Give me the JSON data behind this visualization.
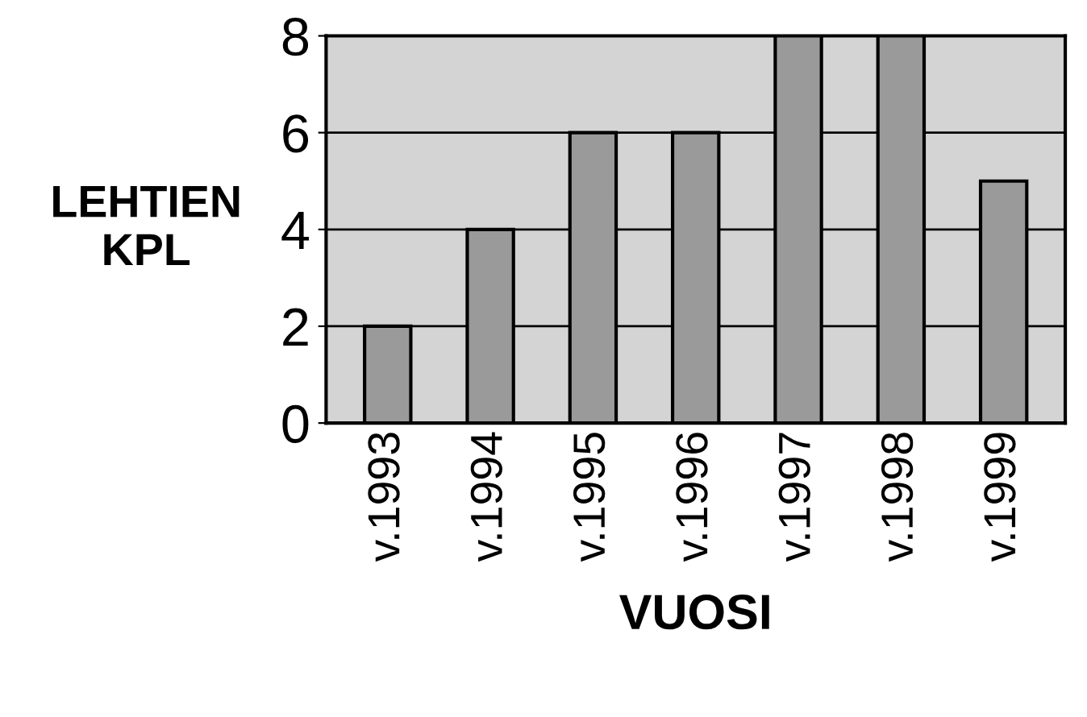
{
  "chart_data": {
    "type": "bar",
    "categories": [
      "v.1993",
      "v.1994",
      "v.1995",
      "v.1996",
      "v.1997",
      "v.1998",
      "v.1999"
    ],
    "values": [
      2,
      4,
      6,
      6,
      8,
      8,
      5
    ],
    "color": "#9a9a9a",
    "xlabel": "VUOSI",
    "ylabel": "LEHTIEN\nKPL",
    "ylim": [
      0,
      8
    ],
    "yticks": [
      0,
      2,
      4,
      6,
      8
    ],
    "grid": "y"
  }
}
